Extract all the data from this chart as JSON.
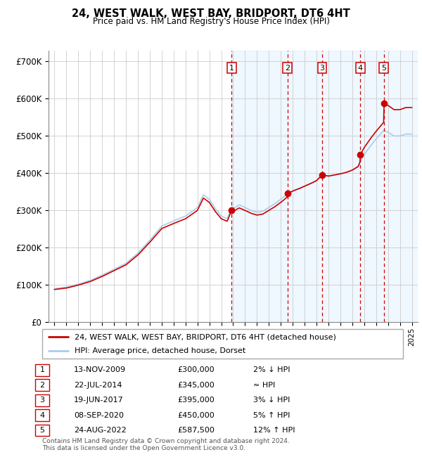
{
  "title": "24, WEST WALK, WEST BAY, BRIDPORT, DT6 4HT",
  "subtitle": "Price paid vs. HM Land Registry's House Price Index (HPI)",
  "legend_line1": "24, WEST WALK, WEST BAY, BRIDPORT, DT6 4HT (detached house)",
  "legend_line2": "HPI: Average price, detached house, Dorset",
  "footer1": "Contains HM Land Registry data © Crown copyright and database right 2024.",
  "footer2": "This data is licensed under the Open Government Licence v3.0.",
  "xlim_start": 1994.5,
  "xlim_end": 2025.5,
  "ylim": [
    0,
    730000
  ],
  "yticks": [
    0,
    100000,
    200000,
    300000,
    400000,
    500000,
    600000,
    700000
  ],
  "ytick_labels": [
    "£0",
    "£100K",
    "£200K",
    "£300K",
    "£400K",
    "£500K",
    "£600K",
    "£700K"
  ],
  "hpi_color": "#aaccee",
  "price_color": "#cc0000",
  "vline_color": "#cc0000",
  "shade_color": "#ddeeff",
  "shade_alpha": 0.45,
  "transactions": [
    {
      "num": 1,
      "date": 2009.87,
      "price": 300000,
      "label": "13-NOV-2009",
      "price_str": "£300,000",
      "hpi_str": "2% ↓ HPI"
    },
    {
      "num": 2,
      "date": 2014.55,
      "price": 345000,
      "label": "22-JUL-2014",
      "price_str": "£345,000",
      "hpi_str": "≈ HPI"
    },
    {
      "num": 3,
      "date": 2017.46,
      "price": 395000,
      "label": "19-JUN-2017",
      "price_str": "£395,000",
      "hpi_str": "3% ↓ HPI"
    },
    {
      "num": 4,
      "date": 2020.68,
      "price": 450000,
      "label": "08-SEP-2020",
      "price_str": "£450,000",
      "hpi_str": "5% ↑ HPI"
    },
    {
      "num": 5,
      "date": 2022.64,
      "price": 587500,
      "label": "24-AUG-2022",
      "price_str": "£587,500",
      "hpi_str": "12% ↑ HPI"
    }
  ]
}
